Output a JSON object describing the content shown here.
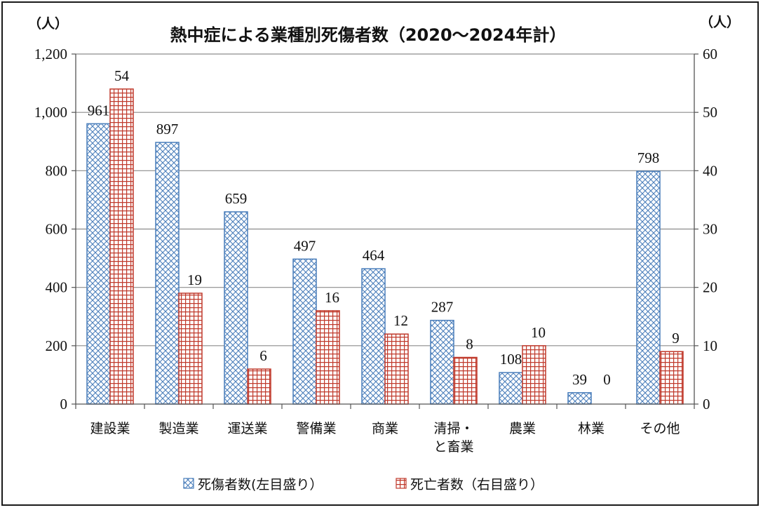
{
  "chart_data": {
    "type": "bar",
    "title": "熱中症による業種別死傷者数（2020～2024年計）",
    "left_unit": "（人）",
    "right_unit": "（人）",
    "categories": [
      [
        "建設業"
      ],
      [
        "製造業"
      ],
      [
        "運送業"
      ],
      [
        "警備業"
      ],
      [
        "商業"
      ],
      [
        "清掃・",
        "と畜業"
      ],
      [
        "農業"
      ],
      [
        "林業"
      ],
      [
        "その他"
      ]
    ],
    "series": [
      {
        "name": "死傷者数(左目盛り）",
        "axis": "left",
        "values": [
          961,
          897,
          659,
          497,
          464,
          287,
          108,
          39,
          798
        ],
        "color": "#4a7ebb",
        "pattern": "diamond-cross"
      },
      {
        "name": "死亡者数（右目盛り）",
        "axis": "right",
        "values": [
          54,
          19,
          6,
          16,
          12,
          8,
          10,
          0,
          9
        ],
        "color": "#c0392b",
        "pattern": "grid"
      }
    ],
    "y_left": {
      "min": 0,
      "max": 1200,
      "ticks": [
        "0",
        "200",
        "400",
        "600",
        "800",
        "1,000",
        "1,200"
      ]
    },
    "y_right": {
      "min": 0,
      "max": 60,
      "ticks": [
        "0",
        "10",
        "20",
        "30",
        "40",
        "50",
        "60"
      ]
    },
    "grid": true,
    "legend_position": "bottom"
  }
}
